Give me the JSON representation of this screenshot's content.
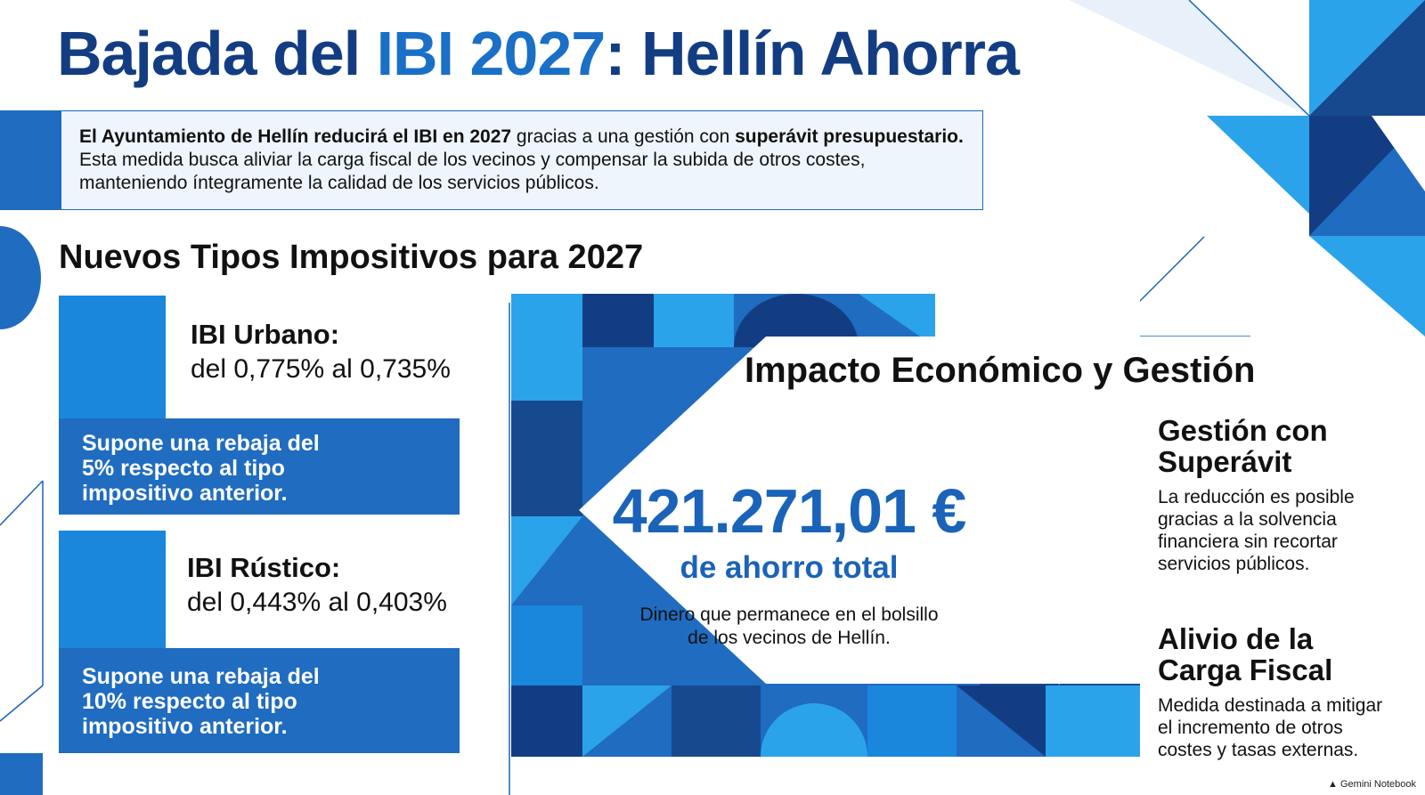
{
  "header": {
    "title_part1": "Bajada del ",
    "title_highlight": "IBI 2027",
    "title_part2": ": Hellín Ahorra"
  },
  "intro": {
    "line1_bold1": "El Ayuntamiento de Hellín reducirá el IBI en 2027",
    "line1_plain": " gracias a una gestión con ",
    "line1_bold2": "superávit presupuestario.",
    "line2": "Esta medida busca aliviar la carga fiscal de los vecinos y compensar la subida de otros costes,",
    "line3": "manteniendo íntegramente la calidad de los servicios públicos."
  },
  "rates_section": {
    "title": "Nuevos Tipos Impositivos para 2027",
    "cards": [
      {
        "name": "IBI Urbano:",
        "range": "del 0,775% al 0,735%",
        "note_lines": [
          "Supone una rebaja del",
          "5% respecto al tipo",
          "impositivo anterior."
        ]
      },
      {
        "name": "IBI Rústico:",
        "range": "del 0,443% al 0,403%",
        "note_lines": [
          "Supone una rebaja del",
          "10% respecto al tipo",
          "impositivo anterior."
        ]
      }
    ]
  },
  "impact": {
    "title": "Impacto Económico y Gestión",
    "amount": "421.271,01 €",
    "amount_label": "de ahorro total",
    "amount_desc_lines": [
      "Dinero que permanece en el bolsillo",
      "de los vecinos de Hellín."
    ],
    "side": [
      {
        "title_lines": [
          "Gestión con",
          "Superávit"
        ],
        "text_lines": [
          "La reducción es posible",
          "gracias a la solvencia",
          "financiera sin recortar",
          "servicios públicos."
        ]
      },
      {
        "title_lines": [
          "Alivio de la",
          "Carga Fiscal"
        ],
        "text_lines": [
          "Medida destinada a mitigar",
          "el incremento de otros",
          "costes y tasas externas."
        ]
      }
    ]
  },
  "footer": {
    "credit": "Gemini Notebook"
  },
  "colors": {
    "navy": "#133d82",
    "dark_blue": "#17498f",
    "blue": "#1f6cc0",
    "mid_blue": "#1a86dc",
    "light_blue": "#2ba3ea",
    "intro_bg": "#eef5fc"
  }
}
